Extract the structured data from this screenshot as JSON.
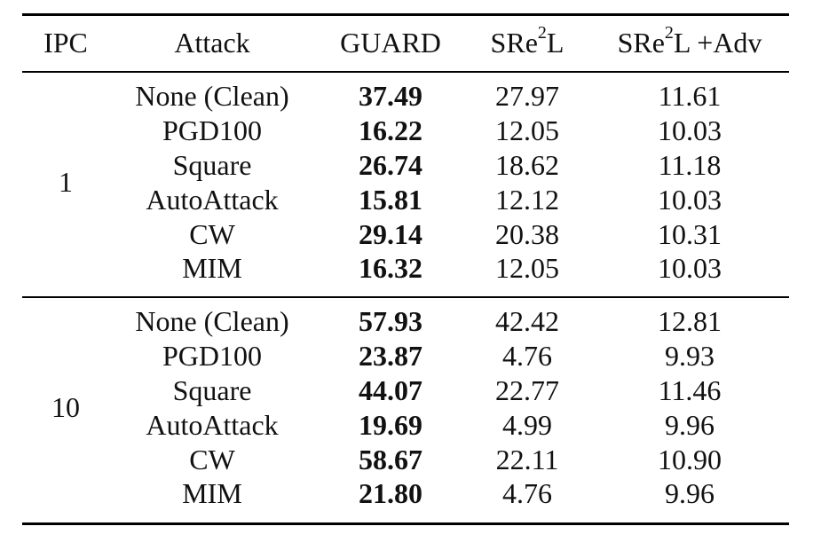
{
  "table": {
    "headers": {
      "ipc": "IPC",
      "attack": "Attack",
      "guard": "GUARD",
      "sre2l_base": "SRe",
      "sre2l_sup": "2",
      "sre2l_suffix": "L",
      "sre2l_adv_base": "SRe",
      "sre2l_adv_sup": "2",
      "sre2l_adv_suffix": "L +Adv"
    },
    "groups": [
      {
        "ipc": "1",
        "rows": [
          {
            "attack": "None (Clean)",
            "guard": "37.49",
            "sre2l": "27.97",
            "sre2l_adv": "11.61"
          },
          {
            "attack": "PGD100",
            "guard": "16.22",
            "sre2l": "12.05",
            "sre2l_adv": "10.03"
          },
          {
            "attack": "Square",
            "guard": "26.74",
            "sre2l": "18.62",
            "sre2l_adv": "11.18"
          },
          {
            "attack": "AutoAttack",
            "guard": "15.81",
            "sre2l": "12.12",
            "sre2l_adv": "10.03"
          },
          {
            "attack": "CW",
            "guard": "29.14",
            "sre2l": "20.38",
            "sre2l_adv": "10.31"
          },
          {
            "attack": "MIM",
            "guard": "16.32",
            "sre2l": "12.05",
            "sre2l_adv": "10.03"
          }
        ]
      },
      {
        "ipc": "10",
        "rows": [
          {
            "attack": "None (Clean)",
            "guard": "57.93",
            "sre2l": "42.42",
            "sre2l_adv": "12.81"
          },
          {
            "attack": "PGD100",
            "guard": "23.87",
            "sre2l": "4.76",
            "sre2l_adv": "9.93"
          },
          {
            "attack": "Square",
            "guard": "44.07",
            "sre2l": "22.77",
            "sre2l_adv": "11.46"
          },
          {
            "attack": "AutoAttack",
            "guard": "19.69",
            "sre2l": "4.99",
            "sre2l_adv": "9.96"
          },
          {
            "attack": "CW",
            "guard": "58.67",
            "sre2l": "22.11",
            "sre2l_adv": "10.90"
          },
          {
            "attack": "MIM",
            "guard": "21.80",
            "sre2l": "4.76",
            "sre2l_adv": "9.96"
          }
        ]
      }
    ]
  }
}
